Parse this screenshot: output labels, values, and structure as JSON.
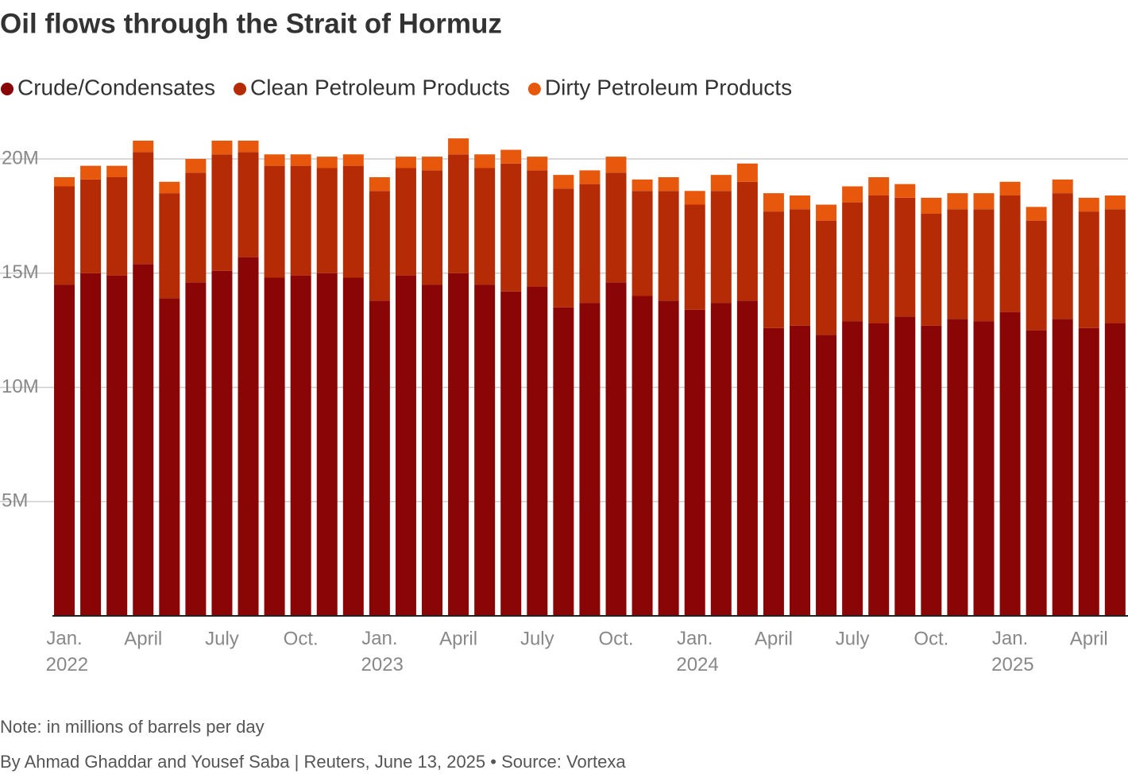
{
  "chart_data": {
    "type": "stacked-bar",
    "title": "Oil flows through the Strait of Hormuz",
    "note": "Note: in millions of barrels per day",
    "byline": "By Ahmad Ghaddar and Yousef Saba | Reuters, June 13, 2025 • Source: Vortexa",
    "categories": [
      "Jan. 2022",
      null,
      null,
      "April",
      null,
      null,
      "July",
      null,
      null,
      "Oct.",
      null,
      null,
      "Jan. 2023",
      null,
      null,
      "April",
      null,
      null,
      "July",
      null,
      null,
      "Oct.",
      null,
      null,
      "Jan. 2024",
      null,
      null,
      "April",
      null,
      null,
      "July",
      null,
      null,
      "Oct.",
      null,
      null,
      "Jan. 2025",
      null,
      null,
      "April",
      null
    ],
    "series": [
      {
        "name": "Crude/Condensates",
        "color": "#8a0505",
        "values": [
          14.5,
          15.0,
          14.9,
          15.4,
          13.9,
          14.6,
          15.1,
          15.7,
          14.8,
          14.9,
          15.0,
          14.8,
          13.8,
          14.9,
          14.5,
          15.0,
          14.5,
          14.2,
          14.4,
          13.5,
          13.7,
          14.6,
          14.0,
          13.8,
          13.4,
          13.7,
          13.8,
          12.6,
          12.7,
          12.3,
          12.9,
          12.8,
          13.1,
          12.7,
          13.0,
          12.9,
          13.3,
          12.5,
          13.0,
          12.6,
          12.8
        ]
      },
      {
        "name": "Clean Petroleum Products",
        "color": "#b42b05",
        "values": [
          4.3,
          4.1,
          4.3,
          4.9,
          4.6,
          4.8,
          5.1,
          4.6,
          4.9,
          4.8,
          4.6,
          4.9,
          4.8,
          4.7,
          5.0,
          5.2,
          5.1,
          5.6,
          5.1,
          5.2,
          5.2,
          4.8,
          4.6,
          4.8,
          4.6,
          4.9,
          5.2,
          5.1,
          5.1,
          5.0,
          5.2,
          5.6,
          5.2,
          4.9,
          4.8,
          4.9,
          5.1,
          4.8,
          5.5,
          5.1,
          5.0
        ]
      },
      {
        "name": "Dirty Petroleum Products",
        "color": "#e8580c",
        "values": [
          0.4,
          0.6,
          0.5,
          0.5,
          0.5,
          0.6,
          0.6,
          0.5,
          0.5,
          0.5,
          0.5,
          0.5,
          0.6,
          0.5,
          0.6,
          0.7,
          0.6,
          0.6,
          0.6,
          0.6,
          0.6,
          0.7,
          0.5,
          0.6,
          0.6,
          0.7,
          0.8,
          0.8,
          0.6,
          0.7,
          0.7,
          0.8,
          0.6,
          0.7,
          0.7,
          0.7,
          0.6,
          0.6,
          0.6,
          0.6,
          0.6
        ]
      }
    ],
    "ylim": [
      0,
      20.3
    ],
    "yticks": [
      {
        "value": 5,
        "label": "5M"
      },
      {
        "value": 10,
        "label": "10M"
      },
      {
        "value": 15,
        "label": "15M"
      },
      {
        "value": 20,
        "label": "20M"
      }
    ],
    "grid": true
  }
}
